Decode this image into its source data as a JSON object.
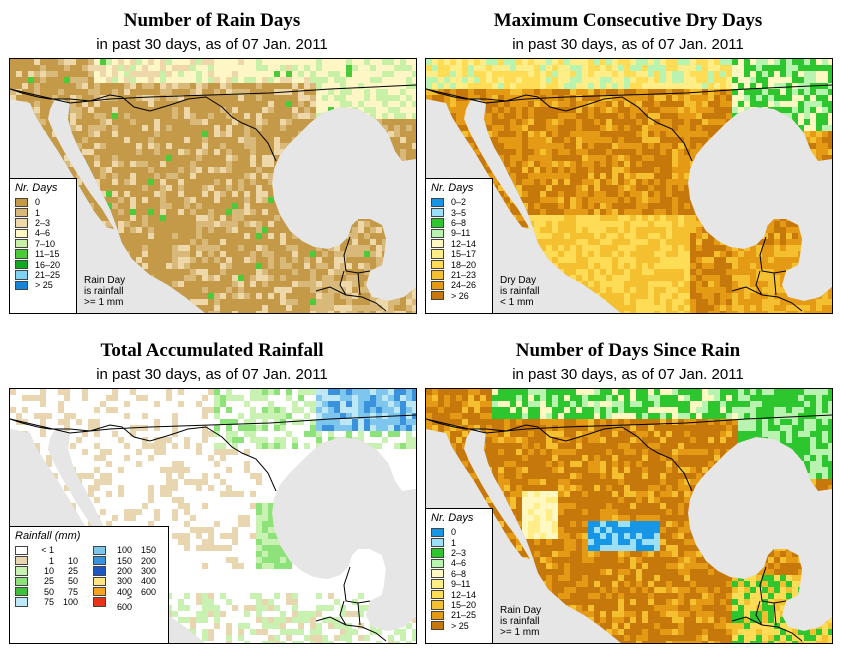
{
  "panels": {
    "rain_days": {
      "title": "Number of Rain Days",
      "subtitle": "in past 30 days, as of  07 Jan. 2011",
      "legend_title": "Nr. Days",
      "legend": [
        {
          "label": "0",
          "color": "#c49a48"
        },
        {
          "label": "1",
          "color": "#d9b97a"
        },
        {
          "label": "2–3",
          "color": "#eed8aa"
        },
        {
          "label": "4–6",
          "color": "#fff6c6"
        },
        {
          "label": "7–10",
          "color": "#c8f0a6"
        },
        {
          "label": "11–15",
          "color": "#4ccb3a"
        },
        {
          "label": "16–20",
          "color": "#13a821"
        },
        {
          "label": "21–25",
          "color": "#7fd2f2"
        },
        {
          "label": "> 25",
          "color": "#1784d6"
        }
      ],
      "note": [
        "Rain Day",
        "is rainfall",
        ">= 1 mm"
      ]
    },
    "dry_days": {
      "title": "Maximum Consecutive Dry Days",
      "subtitle": "in past 30 days, as of  07 Jan. 2011",
      "legend_title": "Nr. Days",
      "legend": [
        {
          "label": "0–2",
          "color": "#1796e6"
        },
        {
          "label": "3–5",
          "color": "#9be0f8"
        },
        {
          "label": "6–8",
          "color": "#2ec62e"
        },
        {
          "label": "9–11",
          "color": "#b9f3b0"
        },
        {
          "label": "12–14",
          "color": "#fff8c0"
        },
        {
          "label": "15–17",
          "color": "#ffee88"
        },
        {
          "label": "18–20",
          "color": "#ffdc55"
        },
        {
          "label": "21–23",
          "color": "#f5c030"
        },
        {
          "label": "24–26",
          "color": "#e49a15"
        },
        {
          "label": "> 26",
          "color": "#c7780a"
        }
      ],
      "note": [
        "Dry Day",
        "is rainfall",
        "< 1 mm"
      ]
    },
    "rainfall": {
      "title": "Total Accumulated Rainfall",
      "subtitle": "in past 30 days, as of  07 Jan. 2011",
      "legend_title": "Rainfall (mm)",
      "legend_left": [
        {
          "lo": "< 1",
          "hi": "",
          "color": "#ffffff"
        },
        {
          "lo": "1",
          "hi": "10",
          "color": "#e8d6b0"
        },
        {
          "lo": "10",
          "hi": "25",
          "color": "#c9f2b2"
        },
        {
          "lo": "25",
          "hi": "50",
          "color": "#8de27a"
        },
        {
          "lo": "50",
          "hi": "75",
          "color": "#3fbf3a"
        },
        {
          "lo": "75",
          "hi": "100",
          "color": "#bfe8f7"
        }
      ],
      "legend_right": [
        {
          "lo": "100",
          "hi": "150",
          "color": "#7fc6ee"
        },
        {
          "lo": "150",
          "hi": "200",
          "color": "#3b92dc"
        },
        {
          "lo": "200",
          "hi": "300",
          "color": "#1c57c4"
        },
        {
          "lo": "300",
          "hi": "400",
          "color": "#ffe680"
        },
        {
          "lo": "400",
          "hi": "600",
          "color": "#f5a21e"
        },
        {
          "lo": "> 600",
          "hi": "",
          "color": "#e8321a"
        }
      ]
    },
    "since_rain": {
      "title": "Number of Days Since Rain",
      "subtitle": "in past 30 days, as of  07 Jan. 2011",
      "legend_title": "Nr. Days",
      "legend": [
        {
          "label": "0",
          "color": "#1796e6"
        },
        {
          "label": "1",
          "color": "#9be0f8"
        },
        {
          "label": "2–3",
          "color": "#2ec62e"
        },
        {
          "label": "4–6",
          "color": "#b9f3b0"
        },
        {
          "label": "6–8",
          "color": "#fff8c0"
        },
        {
          "label": "9–11",
          "color": "#ffee88"
        },
        {
          "label": "12–14",
          "color": "#ffdc55"
        },
        {
          "label": "15–20",
          "color": "#f5c030"
        },
        {
          "label": "21–25",
          "color": "#e49a15"
        },
        {
          "label": "> 25",
          "color": "#c7780a"
        }
      ],
      "note": [
        "Rain Day",
        "is rainfall",
        ">= 1 mm"
      ]
    }
  },
  "colors": {
    "ocean": "#e6e6e6",
    "border": "#000000"
  }
}
